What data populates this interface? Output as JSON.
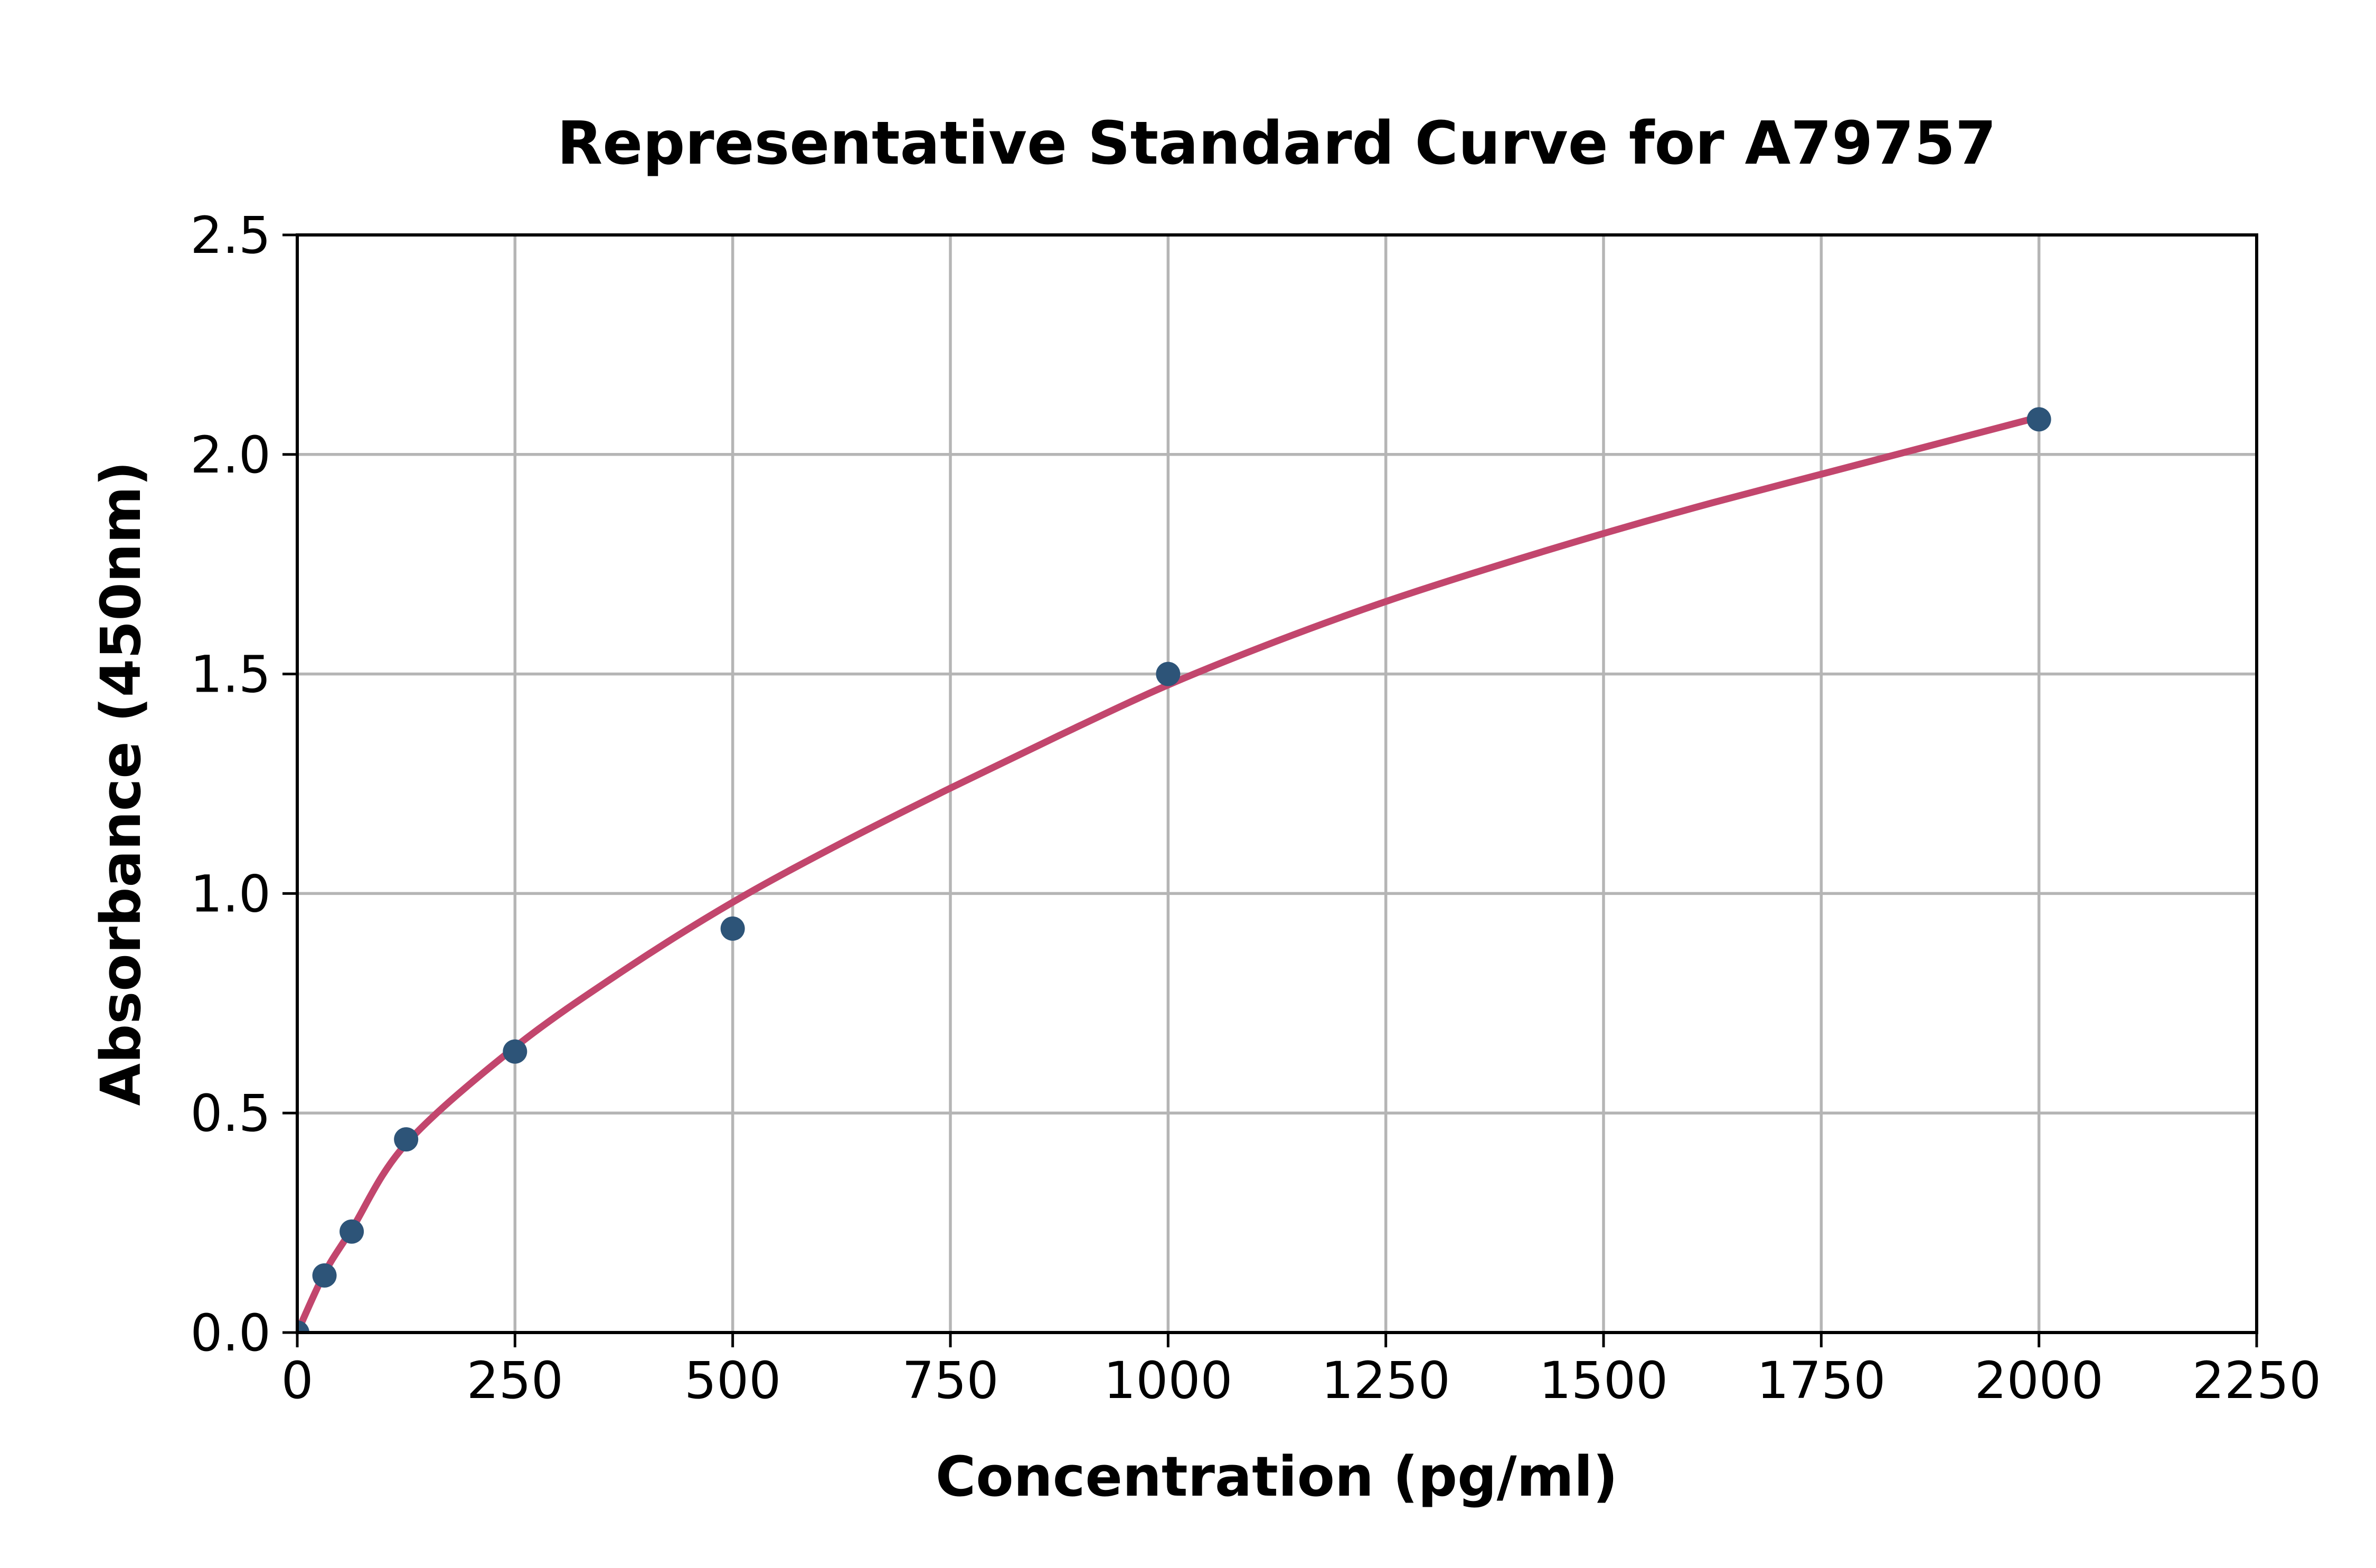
{
  "chart_data": {
    "type": "scatter",
    "title": "Representative Standard Curve for A79757",
    "xlabel": "Concentration (pg/ml)",
    "ylabel": "Absorbance (450nm)",
    "xlim": [
      0,
      2250
    ],
    "ylim": [
      0,
      2.5
    ],
    "xticks": [
      0,
      250,
      500,
      750,
      1000,
      1250,
      1500,
      1750,
      2000,
      2250
    ],
    "xtick_labels": [
      "0",
      "250",
      "500",
      "750",
      "1000",
      "1250",
      "1500",
      "1750",
      "2000",
      "2250"
    ],
    "yticks": [
      0,
      0.5,
      1,
      1.5,
      2,
      2.5
    ],
    "ytick_labels": [
      "0.0",
      "0.5",
      "1.0",
      "1.5",
      "2.0",
      "2.5"
    ],
    "grid": true,
    "legend": "none",
    "series": [
      {
        "name": "standard-points",
        "kind": "scatter",
        "color": "#2d5478",
        "points": [
          [
            0,
            0.0
          ],
          [
            31.25,
            0.13
          ],
          [
            62.5,
            0.23
          ],
          [
            125,
            0.44
          ],
          [
            250,
            0.64
          ],
          [
            500,
            0.92
          ],
          [
            1000,
            1.5
          ],
          [
            2000,
            2.08
          ]
        ]
      },
      {
        "name": "fitted-curve",
        "kind": "line",
        "color": "#c2466d",
        "points": [
          [
            0,
            0
          ],
          [
            31.25,
            0.135
          ],
          [
            62.5,
            0.235
          ],
          [
            125,
            0.43
          ],
          [
            250,
            0.65
          ],
          [
            375,
            0.825
          ],
          [
            500,
            0.98
          ],
          [
            625,
            1.115
          ],
          [
            750,
            1.24
          ],
          [
            875,
            1.36
          ],
          [
            1000,
            1.475
          ],
          [
            1125,
            1.575
          ],
          [
            1250,
            1.665
          ],
          [
            1375,
            1.745
          ],
          [
            1500,
            1.82
          ],
          [
            1625,
            1.89
          ],
          [
            1750,
            1.955
          ],
          [
            1875,
            2.02
          ],
          [
            2000,
            2.085
          ]
        ]
      }
    ],
    "colors": {
      "grid": "#b5b5b5",
      "spine": "#000000",
      "text": "#000000",
      "background": "#ffffff"
    }
  }
}
